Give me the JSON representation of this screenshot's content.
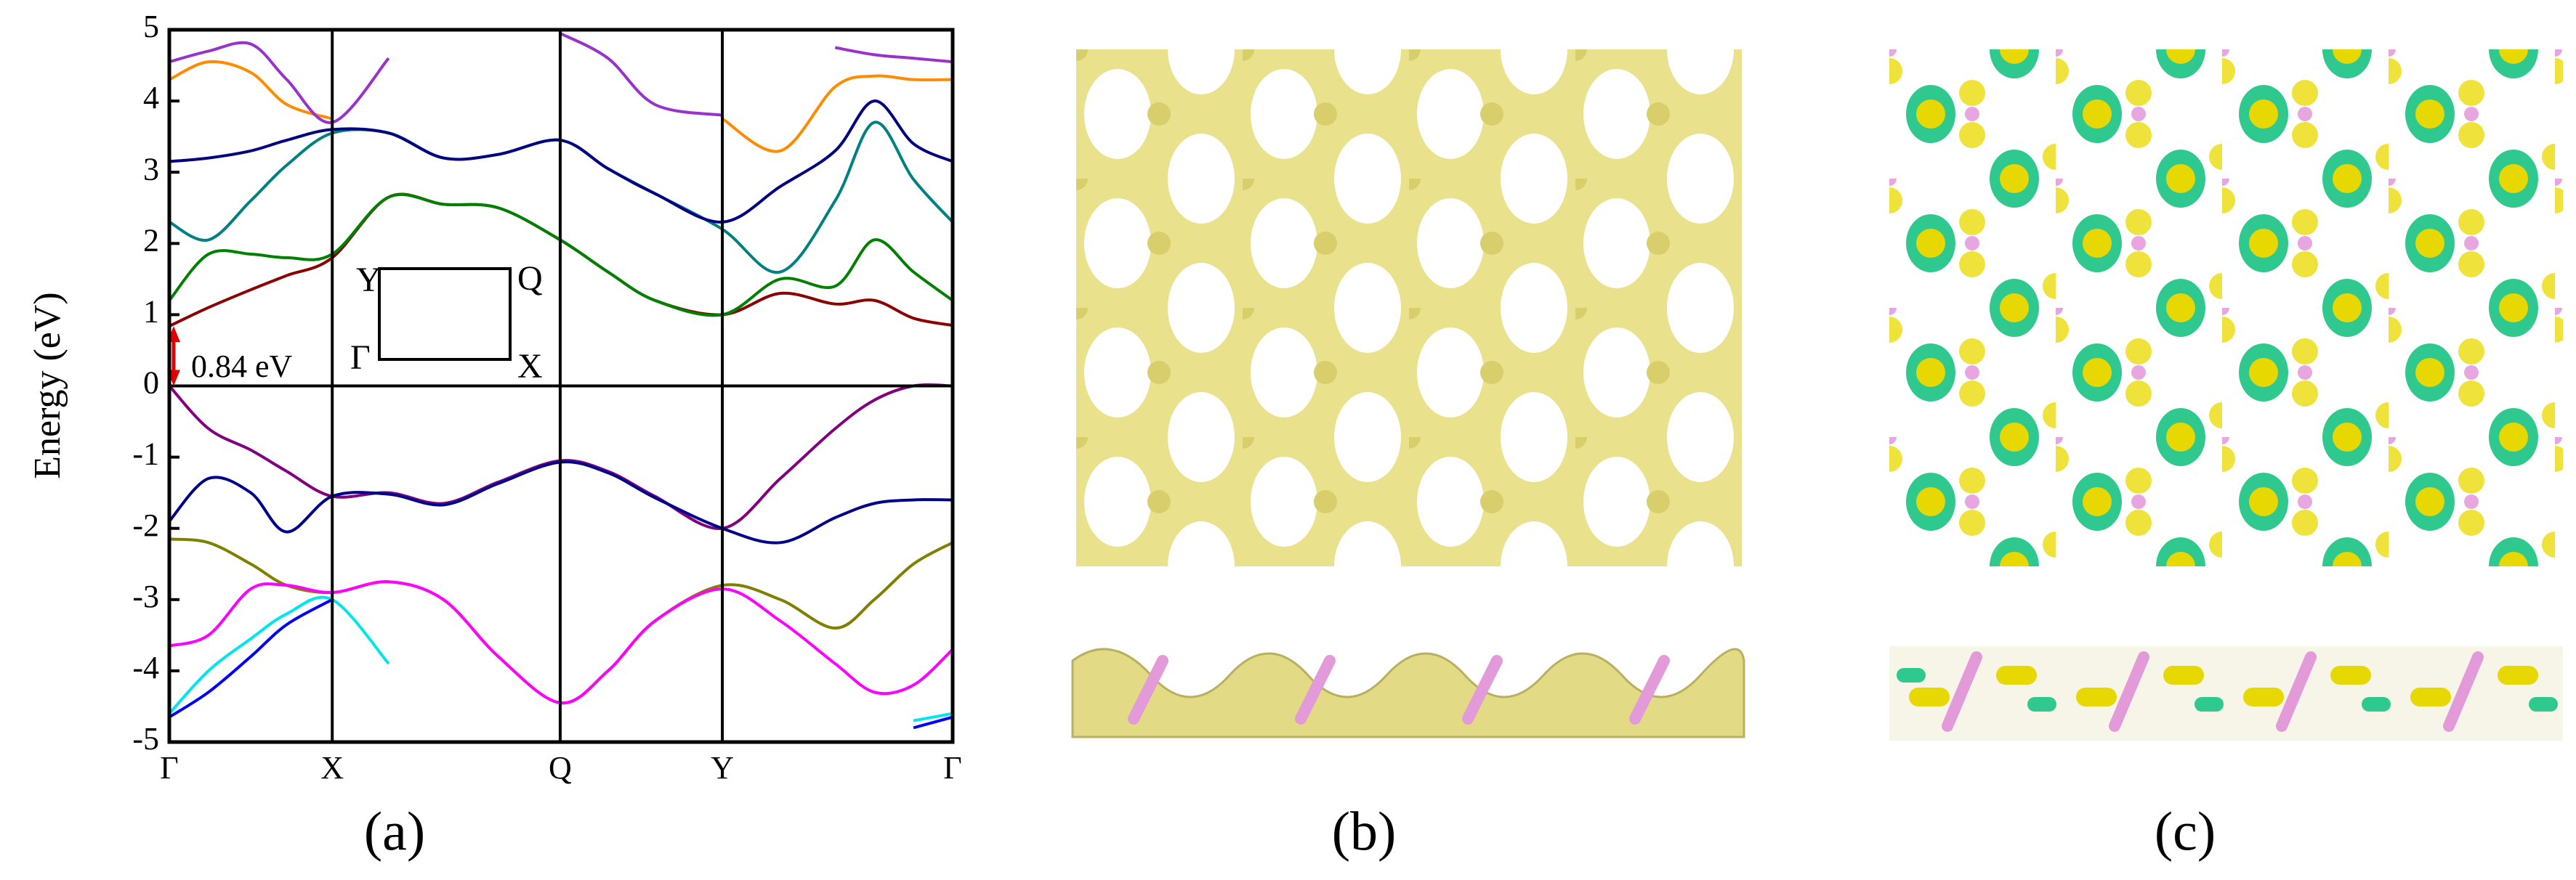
{
  "chart_data": {
    "type": "line",
    "y_label": "Energy (eV)",
    "panel_labels": [
      "(a)",
      "(b)",
      "(c)"
    ],
    "annotation": "0.84 eV",
    "inset_labels": [
      "Y",
      "Q",
      "Γ",
      "X"
    ],
    "x": [
      0,
      0.05,
      0.104,
      0.15,
      0.208,
      0.28,
      0.35,
      0.42,
      0.499,
      0.56,
      0.62,
      0.706,
      0.78,
      0.85,
      0.9,
      0.95,
      1.0
    ],
    "xlim": [
      0,
      1.0
    ],
    "xticks": [
      {
        "value": 0,
        "label": "Γ"
      },
      {
        "value": 0.208,
        "label": "X"
      },
      {
        "value": 0.499,
        "label": "Q"
      },
      {
        "value": 0.706,
        "label": "Y"
      },
      {
        "value": 1.0,
        "label": "Γ"
      }
    ],
    "ylim": [
      -5,
      5
    ],
    "yticks": [
      -5,
      -4,
      -3,
      -2,
      -1,
      0,
      1,
      2,
      3,
      4,
      5
    ],
    "series": [
      {
        "color": "#800080",
        "values": [
          0,
          -0.6,
          -0.9,
          -1.2,
          -1.55,
          -1.5,
          -1.65,
          -1.35,
          -1.05,
          -1.2,
          -1.55,
          -2.0,
          -1.3,
          -0.6,
          -0.2,
          0,
          0
        ]
      },
      {
        "color": "#00008b",
        "values": [
          -1.9,
          -1.3,
          -1.5,
          -2.05,
          -1.55,
          -1.52,
          -1.67,
          -1.37,
          -1.07,
          -1.22,
          -1.57,
          -2.0,
          -2.2,
          -1.85,
          -1.65,
          -1.6,
          -1.6
        ]
      },
      {
        "color": "#808000",
        "values": [
          -2.15,
          -2.2,
          -2.5,
          -2.8,
          -2.9,
          -2.75,
          -3.0,
          -3.8,
          -4.45,
          -4.0,
          -3.3,
          -2.8,
          -3.0,
          -3.4,
          -3.0,
          -2.5,
          -2.2
        ]
      },
      {
        "color": "#ff00ff",
        "values": [
          -3.65,
          -3.5,
          -2.85,
          -2.8,
          -2.9,
          -2.75,
          -3.0,
          -3.8,
          -4.45,
          -4.0,
          -3.3,
          -2.85,
          -3.3,
          -3.9,
          -4.3,
          -4.2,
          -3.7
        ]
      },
      {
        "color": "#00e5ee",
        "values": [
          -4.6,
          -4.0,
          -3.55,
          -3.2,
          -3.0,
          -3.9,
          null,
          null,
          null,
          null,
          null,
          null,
          null,
          null,
          null,
          -4.7,
          -4.6
        ]
      },
      {
        "color": "#0000ff",
        "values": [
          -4.65,
          -4.3,
          -3.8,
          -3.35,
          -3.0,
          null,
          null,
          null,
          null,
          null,
          null,
          null,
          null,
          null,
          null,
          -4.8,
          -4.65
        ]
      },
      {
        "color": "#8b0000",
        "values": [
          0.84,
          1.1,
          1.35,
          1.55,
          1.8,
          2.65,
          2.55,
          2.5,
          2.05,
          1.6,
          1.2,
          1.0,
          1.3,
          1.15,
          1.2,
          0.95,
          0.85
        ]
      },
      {
        "color": "#008000",
        "values": [
          1.2,
          1.85,
          1.85,
          1.8,
          1.85,
          2.65,
          2.55,
          2.5,
          2.05,
          1.6,
          1.2,
          1.0,
          1.5,
          1.4,
          2.05,
          1.6,
          1.2
        ]
      },
      {
        "color": "#008080",
        "values": [
          2.3,
          2.05,
          2.6,
          3.1,
          3.55,
          3.55,
          3.2,
          3.25,
          3.45,
          3.05,
          2.7,
          2.2,
          1.6,
          2.6,
          3.7,
          2.9,
          2.3
        ]
      },
      {
        "color": "#000080",
        "values": [
          3.15,
          3.2,
          3.3,
          3.45,
          3.6,
          3.55,
          3.2,
          3.25,
          3.45,
          3.05,
          2.7,
          2.3,
          2.8,
          3.3,
          4.0,
          3.4,
          3.15
        ]
      },
      {
        "color": "#ff8c00",
        "values": [
          4.3,
          4.55,
          4.4,
          3.95,
          3.75,
          null,
          null,
          null,
          null,
          null,
          null,
          3.75,
          3.3,
          4.2,
          4.35,
          4.3,
          4.3
        ]
      },
      {
        "color": "#9932cc",
        "values": [
          4.55,
          4.7,
          4.8,
          4.3,
          3.7,
          4.6,
          null,
          null,
          4.95,
          4.6,
          3.95,
          3.8,
          null,
          4.75,
          4.65,
          4.6,
          4.55
        ]
      }
    ]
  }
}
